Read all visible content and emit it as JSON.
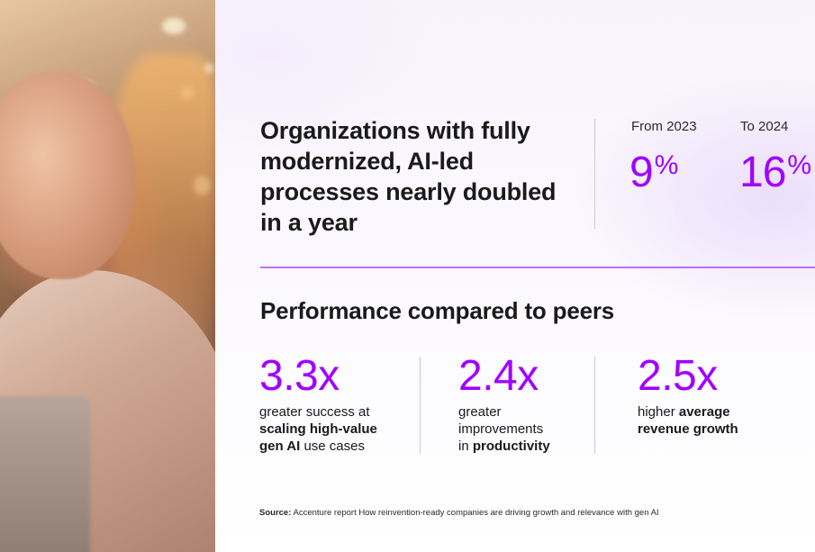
{
  "headline": "Organizations with fully modernized, AI-led processes nearly doubled in a year",
  "comparison": [
    {
      "label": "From 2023",
      "value": "9",
      "unit": "%"
    },
    {
      "label": "To 2024",
      "value": "16",
      "unit": "%"
    }
  ],
  "section_title": "Performance compared to peers",
  "metrics": [
    {
      "value": "3.3x",
      "line1_prefix": "greater success at",
      "line1_bold": "",
      "line2_bold": "scaling high-value",
      "line3_bold": "gen AI",
      "line3_rest": " use cases"
    },
    {
      "value": "2.4x",
      "line1": "greater",
      "line2": "improvements",
      "line3_prefix": "in ",
      "line3_bold": "productivity"
    },
    {
      "value": "2.5x",
      "line1_prefix": "higher ",
      "line1_bold": "average",
      "line2_bold": "revenue growth"
    }
  ],
  "source": {
    "label": "Source:",
    "text": " Accenture report How reinvention-ready companies are driving growth and relevance with gen AI"
  },
  "colors": {
    "accent": "#a100ff",
    "rule": "#c26cff",
    "text": "#1a1a1a"
  }
}
